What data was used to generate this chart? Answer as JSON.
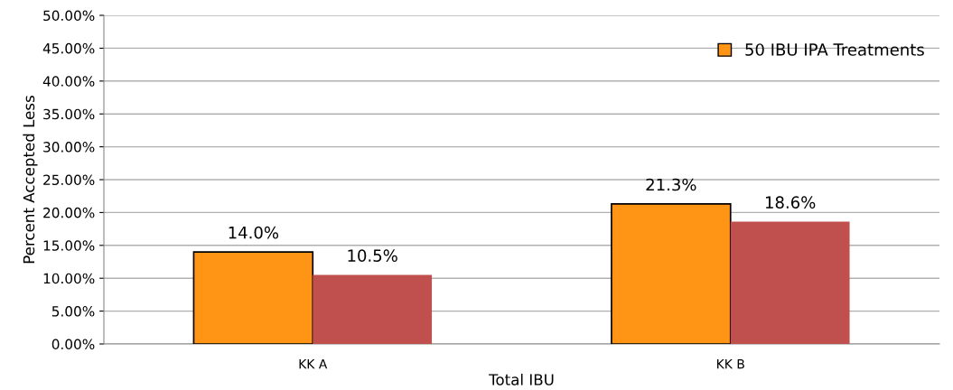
{
  "chart_data": {
    "type": "bar",
    "xlabel": "Total IBU",
    "ylabel": "Percent Accepted Less",
    "categories": [
      "KK A",
      "KK B"
    ],
    "series": [
      {
        "name": "50 IBU IPA Treatments",
        "color": "#ff9415",
        "values": [
          14.0,
          21.3
        ],
        "value_labels": [
          "14.0%",
          "21.3%"
        ]
      },
      {
        "color": "#c0504d",
        "values": [
          10.5,
          18.6
        ],
        "value_labels": [
          "10.5%",
          "18.6%"
        ]
      }
    ],
    "ylim": [
      0,
      50
    ],
    "yticks": [
      {
        "value": 0,
        "label": "0.00%"
      },
      {
        "value": 5,
        "label": "5.00%"
      },
      {
        "value": 10,
        "label": "10.00%"
      },
      {
        "value": 15,
        "label": "15.00%"
      },
      {
        "value": 20,
        "label": "20.00%"
      },
      {
        "value": 25,
        "label": "25.00%"
      },
      {
        "value": 30,
        "label": "30.00%"
      },
      {
        "value": 35,
        "label": "35.00%"
      },
      {
        "value": 40,
        "label": "40.00%"
      },
      {
        "value": 45,
        "label": "45.00%"
      },
      {
        "value": 50,
        "label": "50.00%"
      }
    ],
    "grid": "y",
    "legend": "top right"
  }
}
